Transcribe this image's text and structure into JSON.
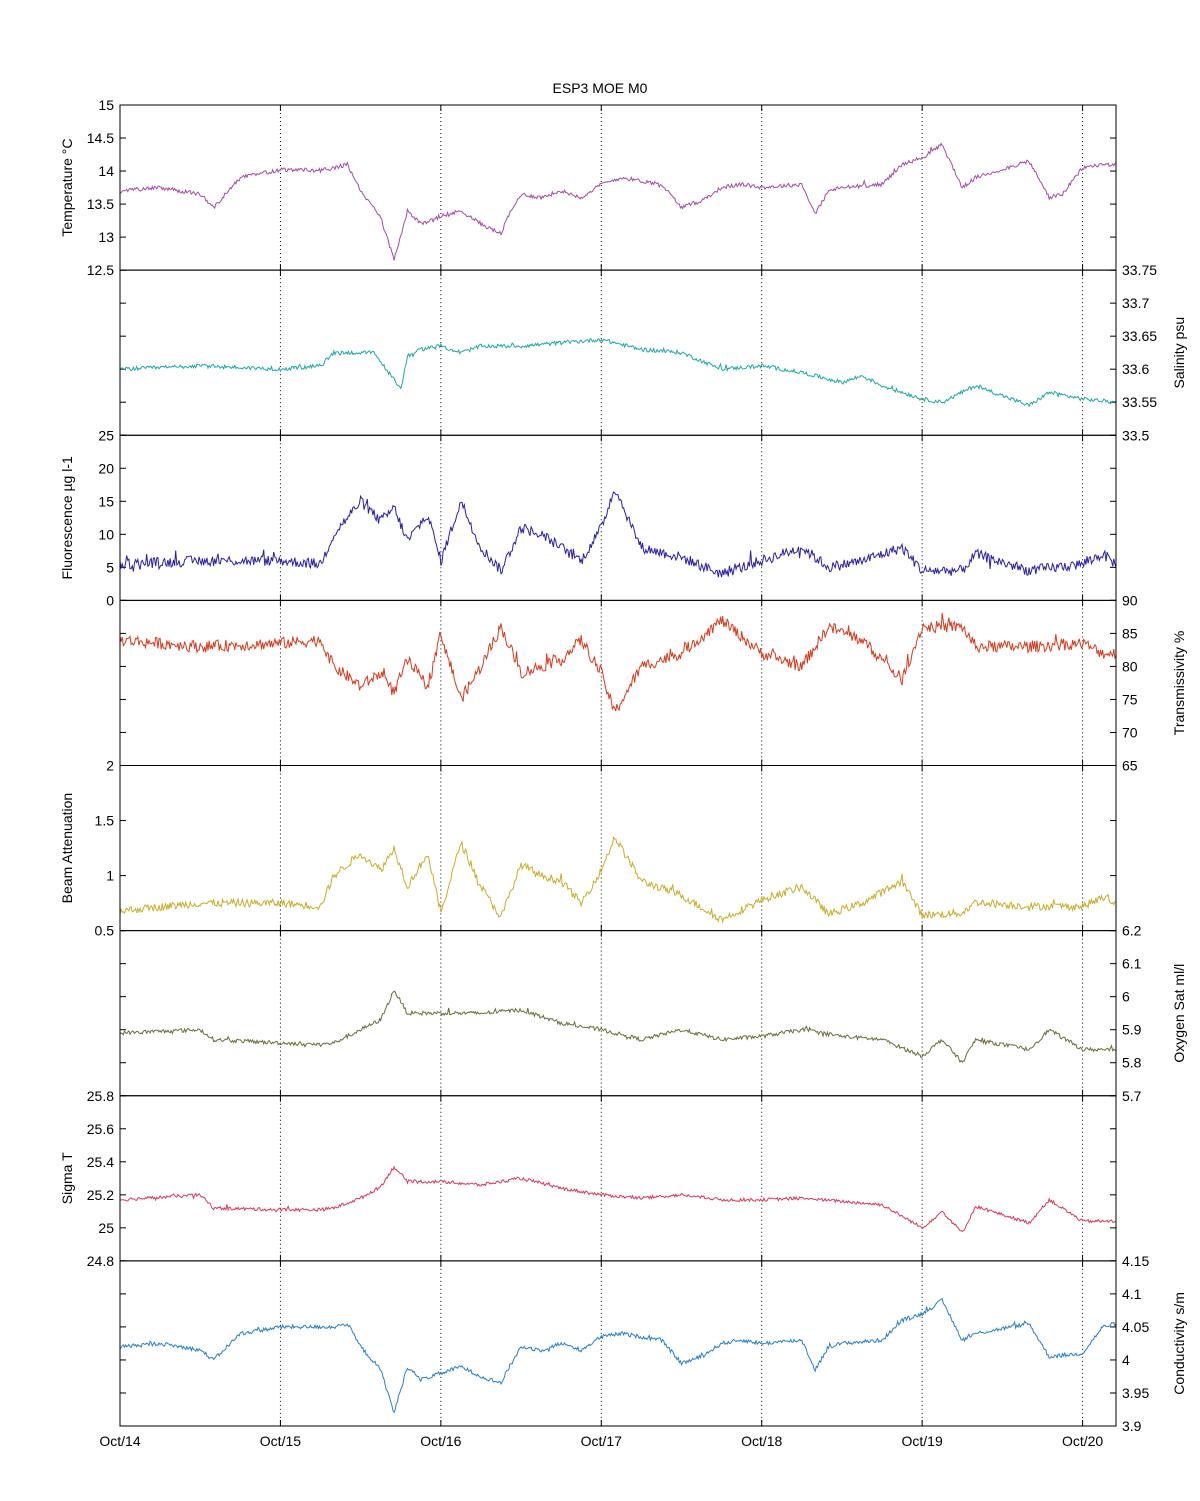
{
  "figure": {
    "title": "ESP3 MOE   M0"
  },
  "x_axis": {
    "type": "date",
    "range": [
      "2010-10-14T00:00",
      "2010-10-20T05:00"
    ],
    "ticks": [
      {
        "label": "Oct/14",
        "date": "2010-10-14"
      },
      {
        "label": "Oct/15",
        "date": "2010-10-15"
      },
      {
        "label": "Oct/16",
        "date": "2010-10-16"
      },
      {
        "label": "Oct/17",
        "date": "2010-10-17"
      },
      {
        "label": "Oct/18",
        "date": "2010-10-18"
      },
      {
        "label": "Oct/19",
        "date": "2010-10-19"
      },
      {
        "label": "Oct/20",
        "date": "2010-10-20"
      }
    ],
    "grid": "dotted"
  },
  "chart_data": [
    {
      "type": "line",
      "ylabel": "Temperature °C",
      "ylabel_side": "left",
      "color": "#a64ca6",
      "ylim": [
        12.5,
        15
      ],
      "yticks": [
        {
          "v": 12.5,
          "label": "12.5"
        },
        {
          "v": 13,
          "label": "13"
        },
        {
          "v": 13.5,
          "label": "13.5"
        },
        {
          "v": 14,
          "label": "14"
        },
        {
          "v": 14.5,
          "label": "14.5"
        },
        {
          "v": 15,
          "label": "15"
        }
      ],
      "noise": 0.03,
      "x": [
        "2010-10-14T00:00",
        "2010-10-14T06:00",
        "2010-10-14T12:00",
        "2010-10-14T14:00",
        "2010-10-14T18:00",
        "2010-10-15T00:00",
        "2010-10-15T06:00",
        "2010-10-15T08:00",
        "2010-10-15T10:00",
        "2010-10-15T12:00",
        "2010-10-15T15:00",
        "2010-10-15T17:00",
        "2010-10-15T19:00",
        "2010-10-15T21:00",
        "2010-10-16T00:00",
        "2010-10-16T03:00",
        "2010-10-16T06:00",
        "2010-10-16T09:00",
        "2010-10-16T10:00",
        "2010-10-16T12:00",
        "2010-10-16T15:00",
        "2010-10-16T18:00",
        "2010-10-16T21:00",
        "2010-10-17T00:00",
        "2010-10-17T03:00",
        "2010-10-17T06:00",
        "2010-10-17T09:00",
        "2010-10-17T12:00",
        "2010-10-17T15:00",
        "2010-10-17T18:00",
        "2010-10-17T21:00",
        "2010-10-18T00:00",
        "2010-10-18T06:00",
        "2010-10-18T08:00",
        "2010-10-18T10:00",
        "2010-10-18T12:00",
        "2010-10-18T18:00",
        "2010-10-18T21:00",
        "2010-10-19T00:00",
        "2010-10-19T03:00",
        "2010-10-19T06:00",
        "2010-10-19T08:00",
        "2010-10-19T16:00",
        "2010-10-19T19:00",
        "2010-10-19T21:00",
        "2010-10-20T00:00",
        "2010-10-20T03:00",
        "2010-10-20T05:00"
      ],
      "y": [
        13.7,
        13.75,
        13.65,
        13.45,
        13.9,
        14.02,
        14.01,
        14.05,
        14.1,
        13.7,
        13.3,
        12.65,
        13.4,
        13.2,
        13.3,
        13.4,
        13.2,
        13.05,
        13.3,
        13.65,
        13.6,
        13.7,
        13.6,
        13.8,
        13.9,
        13.85,
        13.8,
        13.45,
        13.55,
        13.75,
        13.8,
        13.75,
        13.8,
        13.35,
        13.7,
        13.75,
        13.8,
        14.1,
        14.2,
        14.4,
        13.75,
        13.9,
        14.15,
        13.6,
        13.65,
        14.05,
        14.1,
        14.1
      ]
    },
    {
      "type": "line",
      "ylabel": "Salinity psu",
      "ylabel_side": "right",
      "color": "#20a8a8",
      "ylim": [
        33.5,
        33.75
      ],
      "yticks": [
        {
          "v": 33.5,
          "label": "33.5"
        },
        {
          "v": 33.55,
          "label": "33.55"
        },
        {
          "v": 33.6,
          "label": "33.6"
        },
        {
          "v": 33.65,
          "label": "33.65"
        },
        {
          "v": 33.7,
          "label": "33.7"
        },
        {
          "v": 33.75,
          "label": "33.75"
        }
      ],
      "noise": 0.003,
      "x": [
        "2010-10-14T00:00",
        "2010-10-14T12:00",
        "2010-10-15T00:00",
        "2010-10-15T06:00",
        "2010-10-15T08:00",
        "2010-10-15T14:00",
        "2010-10-15T18:00",
        "2010-10-15T19:00",
        "2010-10-15T21:00",
        "2010-10-16T00:00",
        "2010-10-16T03:00",
        "2010-10-16T06:00",
        "2010-10-16T12:00",
        "2010-10-16T18:00",
        "2010-10-17T00:00",
        "2010-10-17T06:00",
        "2010-10-17T12:00",
        "2010-10-17T18:00",
        "2010-10-18T00:00",
        "2010-10-18T06:00",
        "2010-10-18T12:00",
        "2010-10-18T15:00",
        "2010-10-18T18:00",
        "2010-10-19T00:00",
        "2010-10-19T03:00",
        "2010-10-19T08:00",
        "2010-10-19T16:00",
        "2010-10-19T19:00",
        "2010-10-20T00:00",
        "2010-10-20T05:00"
      ],
      "y": [
        33.6,
        33.605,
        33.6,
        33.605,
        33.625,
        33.625,
        33.57,
        33.62,
        33.63,
        33.635,
        33.625,
        33.635,
        33.635,
        33.64,
        33.645,
        33.63,
        33.625,
        33.6,
        33.605,
        33.595,
        33.58,
        33.59,
        33.575,
        33.555,
        33.55,
        33.575,
        33.545,
        33.565,
        33.555,
        33.55
      ]
    },
    {
      "type": "line",
      "ylabel": "Fluorescence µg l-1",
      "ylabel_side": "left",
      "color": "#2a1faa",
      "ylim": [
        0,
        25
      ],
      "yticks": [
        {
          "v": 0,
          "label": "0"
        },
        {
          "v": 5,
          "label": "5"
        },
        {
          "v": 10,
          "label": "10"
        },
        {
          "v": 15,
          "label": "15"
        },
        {
          "v": 20,
          "label": "20"
        },
        {
          "v": 25,
          "label": "25"
        }
      ],
      "noise": 0.8,
      "x": [
        "2010-10-14T00:00",
        "2010-10-14T12:00",
        "2010-10-15T00:00",
        "2010-10-15T06:00",
        "2010-10-15T08:00",
        "2010-10-15T12:00",
        "2010-10-15T15:00",
        "2010-10-15T17:00",
        "2010-10-15T19:00",
        "2010-10-15T22:00",
        "2010-10-16T00:00",
        "2010-10-16T03:00",
        "2010-10-16T06:00",
        "2010-10-16T09:00",
        "2010-10-16T12:00",
        "2010-10-16T15:00",
        "2010-10-16T18:00",
        "2010-10-16T21:00",
        "2010-10-17T00:00",
        "2010-10-17T02:00",
        "2010-10-17T06:00",
        "2010-10-17T12:00",
        "2010-10-17T18:00",
        "2010-10-18T00:00",
        "2010-10-18T06:00",
        "2010-10-18T10:00",
        "2010-10-18T15:00",
        "2010-10-18T21:00",
        "2010-10-19T00:00",
        "2010-10-19T06:00",
        "2010-10-19T08:00",
        "2010-10-19T16:00",
        "2010-10-20T00:00",
        "2010-10-20T03:00",
        "2010-10-20T05:00"
      ],
      "y": [
        5.5,
        6,
        6,
        5.5,
        10,
        15,
        12,
        14,
        9,
        13,
        6,
        15,
        8,
        4.5,
        11,
        10,
        8,
        6,
        11,
        17,
        8,
        6.5,
        4,
        6,
        8,
        5,
        6,
        8,
        4.5,
        4.5,
        7,
        4.5,
        5.5,
        7,
        5.5
      ]
    },
    {
      "type": "line",
      "ylabel": "Transmissivity %",
      "ylabel_side": "right",
      "color": "#d83a1e",
      "ylim": [
        65,
        90
      ],
      "yticks": [
        {
          "v": 65,
          "label": "65"
        },
        {
          "v": 70,
          "label": "70"
        },
        {
          "v": 75,
          "label": "75"
        },
        {
          "v": 80,
          "label": "80"
        },
        {
          "v": 85,
          "label": "85"
        },
        {
          "v": 90,
          "label": "90"
        }
      ],
      "noise": 0.9,
      "x": [
        "2010-10-14T00:00",
        "2010-10-14T12:00",
        "2010-10-15T00:00",
        "2010-10-15T06:00",
        "2010-10-15T08:00",
        "2010-10-15T12:00",
        "2010-10-15T15:00",
        "2010-10-15T17:00",
        "2010-10-15T19:00",
        "2010-10-15T22:00",
        "2010-10-16T00:00",
        "2010-10-16T03:00",
        "2010-10-16T06:00",
        "2010-10-16T09:00",
        "2010-10-16T12:00",
        "2010-10-16T15:00",
        "2010-10-16T18:00",
        "2010-10-16T21:00",
        "2010-10-17T00:00",
        "2010-10-17T02:00",
        "2010-10-17T06:00",
        "2010-10-17T12:00",
        "2010-10-17T18:00",
        "2010-10-18T00:00",
        "2010-10-18T06:00",
        "2010-10-18T10:00",
        "2010-10-18T15:00",
        "2010-10-18T21:00",
        "2010-10-19T00:00",
        "2010-10-19T06:00",
        "2010-10-19T08:00",
        "2010-10-19T16:00",
        "2010-10-20T00:00",
        "2010-10-20T03:00",
        "2010-10-20T05:00"
      ],
      "y": [
        84,
        83,
        83.5,
        84,
        80,
        77,
        79,
        76,
        81,
        77,
        85,
        75,
        80,
        86,
        79,
        80,
        81,
        84,
        79,
        73,
        80,
        82,
        87,
        82,
        80,
        86,
        84,
        78,
        86,
        86,
        83,
        83,
        83.5,
        82,
        82
      ]
    },
    {
      "type": "line",
      "ylabel": "Beam Attenuation",
      "ylabel_side": "left",
      "color": "#c9ad2c",
      "ylim": [
        0.5,
        2
      ],
      "yticks": [
        {
          "v": 0.5,
          "label": "0.5"
        },
        {
          "v": 1,
          "label": "1"
        },
        {
          "v": 1.5,
          "label": "1.5"
        },
        {
          "v": 2,
          "label": "2"
        }
      ],
      "noise": 0.035,
      "x": [
        "2010-10-14T00:00",
        "2010-10-14T12:00",
        "2010-10-15T00:00",
        "2010-10-15T06:00",
        "2010-10-15T08:00",
        "2010-10-15T12:00",
        "2010-10-15T15:00",
        "2010-10-15T17:00",
        "2010-10-15T19:00",
        "2010-10-15T22:00",
        "2010-10-16T00:00",
        "2010-10-16T03:00",
        "2010-10-16T06:00",
        "2010-10-16T09:00",
        "2010-10-16T12:00",
        "2010-10-16T15:00",
        "2010-10-16T18:00",
        "2010-10-16T21:00",
        "2010-10-17T00:00",
        "2010-10-17T02:00",
        "2010-10-17T06:00",
        "2010-10-17T12:00",
        "2010-10-17T18:00",
        "2010-10-18T00:00",
        "2010-10-18T06:00",
        "2010-10-18T10:00",
        "2010-10-18T15:00",
        "2010-10-18T21:00",
        "2010-10-19T00:00",
        "2010-10-19T06:00",
        "2010-10-19T08:00",
        "2010-10-19T16:00",
        "2010-10-20T00:00",
        "2010-10-20T03:00",
        "2010-10-20T05:00"
      ],
      "y": [
        0.68,
        0.75,
        0.75,
        0.72,
        1,
        1.2,
        1.05,
        1.25,
        0.9,
        1.2,
        0.66,
        1.3,
        0.9,
        0.62,
        1.1,
        1,
        0.95,
        0.75,
        1.05,
        1.35,
        0.95,
        0.82,
        0.6,
        0.78,
        0.9,
        0.65,
        0.75,
        0.95,
        0.64,
        0.66,
        0.76,
        0.72,
        0.72,
        0.8,
        0.75
      ]
    },
    {
      "type": "line",
      "ylabel": "Oxygen Sat ml/l",
      "ylabel_side": "right",
      "color": "#6c6c3a",
      "ylim": [
        5.7,
        6.2
      ],
      "yticks": [
        {
          "v": 5.7,
          "label": "5.7"
        },
        {
          "v": 5.8,
          "label": "5.8"
        },
        {
          "v": 5.9,
          "label": "5.9"
        },
        {
          "v": 6,
          "label": "6"
        },
        {
          "v": 6.1,
          "label": "6.1"
        },
        {
          "v": 6.2,
          "label": "6.2"
        }
      ],
      "noise": 0.006,
      "x": [
        "2010-10-14T00:00",
        "2010-10-14T12:00",
        "2010-10-14T14:00",
        "2010-10-15T00:00",
        "2010-10-15T06:00",
        "2010-10-15T08:00",
        "2010-10-15T12:00",
        "2010-10-15T15:00",
        "2010-10-15T17:00",
        "2010-10-15T19:00",
        "2010-10-16T00:00",
        "2010-10-16T06:00",
        "2010-10-16T12:00",
        "2010-10-16T18:00",
        "2010-10-17T00:00",
        "2010-10-17T06:00",
        "2010-10-17T12:00",
        "2010-10-17T18:00",
        "2010-10-18T00:00",
        "2010-10-18T06:00",
        "2010-10-18T12:00",
        "2010-10-18T18:00",
        "2010-10-19T00:00",
        "2010-10-19T03:00",
        "2010-10-19T06:00",
        "2010-10-19T08:00",
        "2010-10-19T16:00",
        "2010-10-19T19:00",
        "2010-10-20T00:00",
        "2010-10-20T05:00"
      ],
      "y": [
        5.89,
        5.9,
        5.87,
        5.86,
        5.855,
        5.86,
        5.9,
        5.93,
        6.02,
        5.95,
        5.95,
        5.95,
        5.96,
        5.92,
        5.9,
        5.87,
        5.9,
        5.87,
        5.88,
        5.9,
        5.88,
        5.87,
        5.82,
        5.87,
        5.8,
        5.87,
        5.84,
        5.9,
        5.84,
        5.84
      ]
    },
    {
      "type": "line",
      "ylabel": "Sigma T",
      "ylabel_side": "left",
      "color": "#d83a58",
      "ylim": [
        24.8,
        25.8
      ],
      "yticks": [
        {
          "v": 24.8,
          "label": "24.8"
        },
        {
          "v": 25,
          "label": "25"
        },
        {
          "v": 25.2,
          "label": "25.2"
        },
        {
          "v": 25.4,
          "label": "25.4"
        },
        {
          "v": 25.6,
          "label": "25.6"
        },
        {
          "v": 25.8,
          "label": "25.8"
        }
      ],
      "noise": 0.01,
      "x": [
        "2010-10-14T00:00",
        "2010-10-14T12:00",
        "2010-10-14T14:00",
        "2010-10-15T00:00",
        "2010-10-15T06:00",
        "2010-10-15T08:00",
        "2010-10-15T12:00",
        "2010-10-15T15:00",
        "2010-10-15T17:00",
        "2010-10-15T19:00",
        "2010-10-16T00:00",
        "2010-10-16T06:00",
        "2010-10-16T12:00",
        "2010-10-16T18:00",
        "2010-10-17T00:00",
        "2010-10-17T06:00",
        "2010-10-17T12:00",
        "2010-10-17T18:00",
        "2010-10-18T00:00",
        "2010-10-18T06:00",
        "2010-10-18T12:00",
        "2010-10-18T18:00",
        "2010-10-19T00:00",
        "2010-10-19T03:00",
        "2010-10-19T06:00",
        "2010-10-19T08:00",
        "2010-10-19T16:00",
        "2010-10-19T19:00",
        "2010-10-20T00:00",
        "2010-10-20T05:00"
      ],
      "y": [
        25.17,
        25.2,
        25.12,
        25.11,
        25.11,
        25.12,
        25.18,
        25.25,
        25.37,
        25.28,
        25.28,
        25.26,
        25.3,
        25.24,
        25.2,
        25.18,
        25.2,
        25.17,
        25.17,
        25.18,
        25.16,
        25.14,
        25,
        25.1,
        24.97,
        25.13,
        25.03,
        25.17,
        25.04,
        25.04
      ]
    },
    {
      "type": "line",
      "ylabel": "Conductivity s/m",
      "ylabel_side": "right",
      "color": "#2880c8",
      "ylim": [
        3.9,
        4.15
      ],
      "yticks": [
        {
          "v": 3.9,
          "label": "3.9"
        },
        {
          "v": 3.95,
          "label": "3.95"
        },
        {
          "v": 4,
          "label": "4"
        },
        {
          "v": 4.05,
          "label": "4.05"
        },
        {
          "v": 4.1,
          "label": "4.1"
        },
        {
          "v": 4.15,
          "label": "4.15"
        }
      ],
      "noise": 0.003,
      "x": [
        "2010-10-14T00:00",
        "2010-10-14T06:00",
        "2010-10-14T12:00",
        "2010-10-14T14:00",
        "2010-10-14T18:00",
        "2010-10-15T00:00",
        "2010-10-15T06:00",
        "2010-10-15T08:00",
        "2010-10-15T10:00",
        "2010-10-15T12:00",
        "2010-10-15T15:00",
        "2010-10-15T17:00",
        "2010-10-15T19:00",
        "2010-10-15T21:00",
        "2010-10-16T00:00",
        "2010-10-16T03:00",
        "2010-10-16T06:00",
        "2010-10-16T09:00",
        "2010-10-16T10:00",
        "2010-10-16T12:00",
        "2010-10-16T15:00",
        "2010-10-16T18:00",
        "2010-10-16T21:00",
        "2010-10-17T00:00",
        "2010-10-17T03:00",
        "2010-10-17T06:00",
        "2010-10-17T09:00",
        "2010-10-17T12:00",
        "2010-10-17T15:00",
        "2010-10-17T18:00",
        "2010-10-17T21:00",
        "2010-10-18T00:00",
        "2010-10-18T06:00",
        "2010-10-18T08:00",
        "2010-10-18T10:00",
        "2010-10-18T12:00",
        "2010-10-18T18:00",
        "2010-10-18T21:00",
        "2010-10-19T00:00",
        "2010-10-19T03:00",
        "2010-10-19T06:00",
        "2010-10-19T08:00",
        "2010-10-19T16:00",
        "2010-10-19T19:00",
        "2010-10-20T00:00",
        "2010-10-20T03:00",
        "2010-10-20T05:00"
      ],
      "y": [
        4.02,
        4.025,
        4.015,
        4,
        4.04,
        4.05,
        4.05,
        4.05,
        4.055,
        4.02,
        3.985,
        3.92,
        3.99,
        3.97,
        3.98,
        3.99,
        3.975,
        3.965,
        3.985,
        4.02,
        4.015,
        4.025,
        4.015,
        4.035,
        4.04,
        4.035,
        4.03,
        3.995,
        4.005,
        4.025,
        4.03,
        4.025,
        4.03,
        3.985,
        4.02,
        4.025,
        4.03,
        4.06,
        4.07,
        4.09,
        4.03,
        4.04,
        4.055,
        4.005,
        4.01,
        4.05,
        4.055
      ]
    }
  ]
}
